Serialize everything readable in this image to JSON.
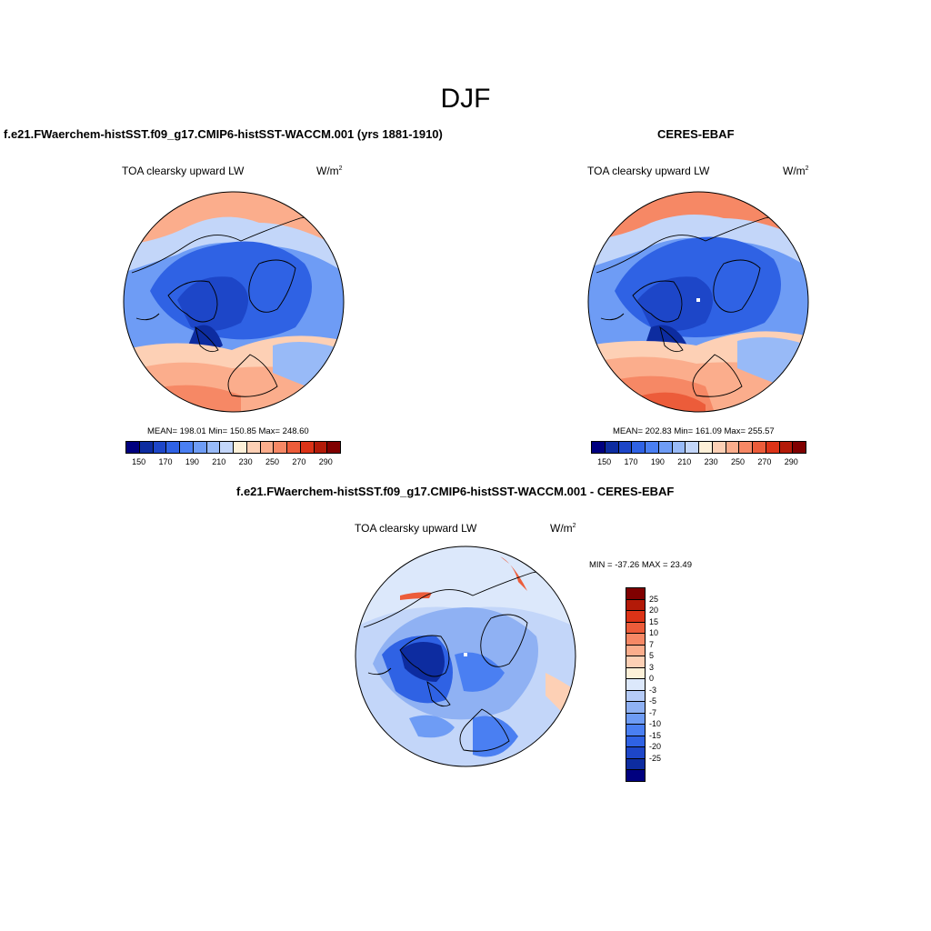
{
  "season": "DJF",
  "panels": [
    {
      "title": "f.e21.FWaerchem-histSST.f09_g17.CMIP6-histSST-WACCM.001 (yrs 1881-1910)",
      "variable": "TOA clearsky upward LW",
      "units_base": "W/m",
      "units_exp": "2",
      "stats": "MEAN= 198.01  Min= 150.85  Max= 248.60"
    },
    {
      "title": "CERES-EBAF",
      "variable": "TOA clearsky upward LW",
      "units_base": "W/m",
      "units_exp": "2",
      "stats": "MEAN= 202.83  Min= 161.09  Max= 255.57"
    },
    {
      "title": "f.e21.FWaerchem-histSST.f09_g17.CMIP6-histSST-WACCM.001 - CERES-EBAF",
      "variable": "TOA clearsky upward LW",
      "units_base": "W/m",
      "units_exp": "2",
      "stats": "MIN = -37.26 MAX =  23.49"
    }
  ],
  "colorbar_abs": {
    "colors": [
      "#00007f",
      "#0d2ca0",
      "#1d46c8",
      "#2f62e4",
      "#4a7ff2",
      "#6e9cf5",
      "#98baf7",
      "#c3d6f9",
      "#fdf0d8",
      "#fdd0b5",
      "#fbad8c",
      "#f68865",
      "#ec5c3a",
      "#dc3317",
      "#b31a08",
      "#800000"
    ],
    "tick_labels": [
      "150",
      "170",
      "190",
      "210",
      "230",
      "250",
      "270",
      "290"
    ]
  },
  "colorbar_diff": {
    "colors": [
      "#800000",
      "#b31a08",
      "#dc3317",
      "#ec5c3a",
      "#f68865",
      "#fbad8c",
      "#fdd0b5",
      "#fdf0d8",
      "#dce8fb",
      "#b5cbf7",
      "#8fb1f3",
      "#6e9cf5",
      "#4a7ff2",
      "#2f62e4",
      "#1d46c8",
      "#0d2ca0",
      "#00007f"
    ],
    "tick_labels": [
      "25",
      "20",
      "15",
      "10",
      "7",
      "5",
      "3",
      "0",
      "-3",
      "-5",
      "-7",
      "-10",
      "-15",
      "-20",
      "-25"
    ]
  }
}
